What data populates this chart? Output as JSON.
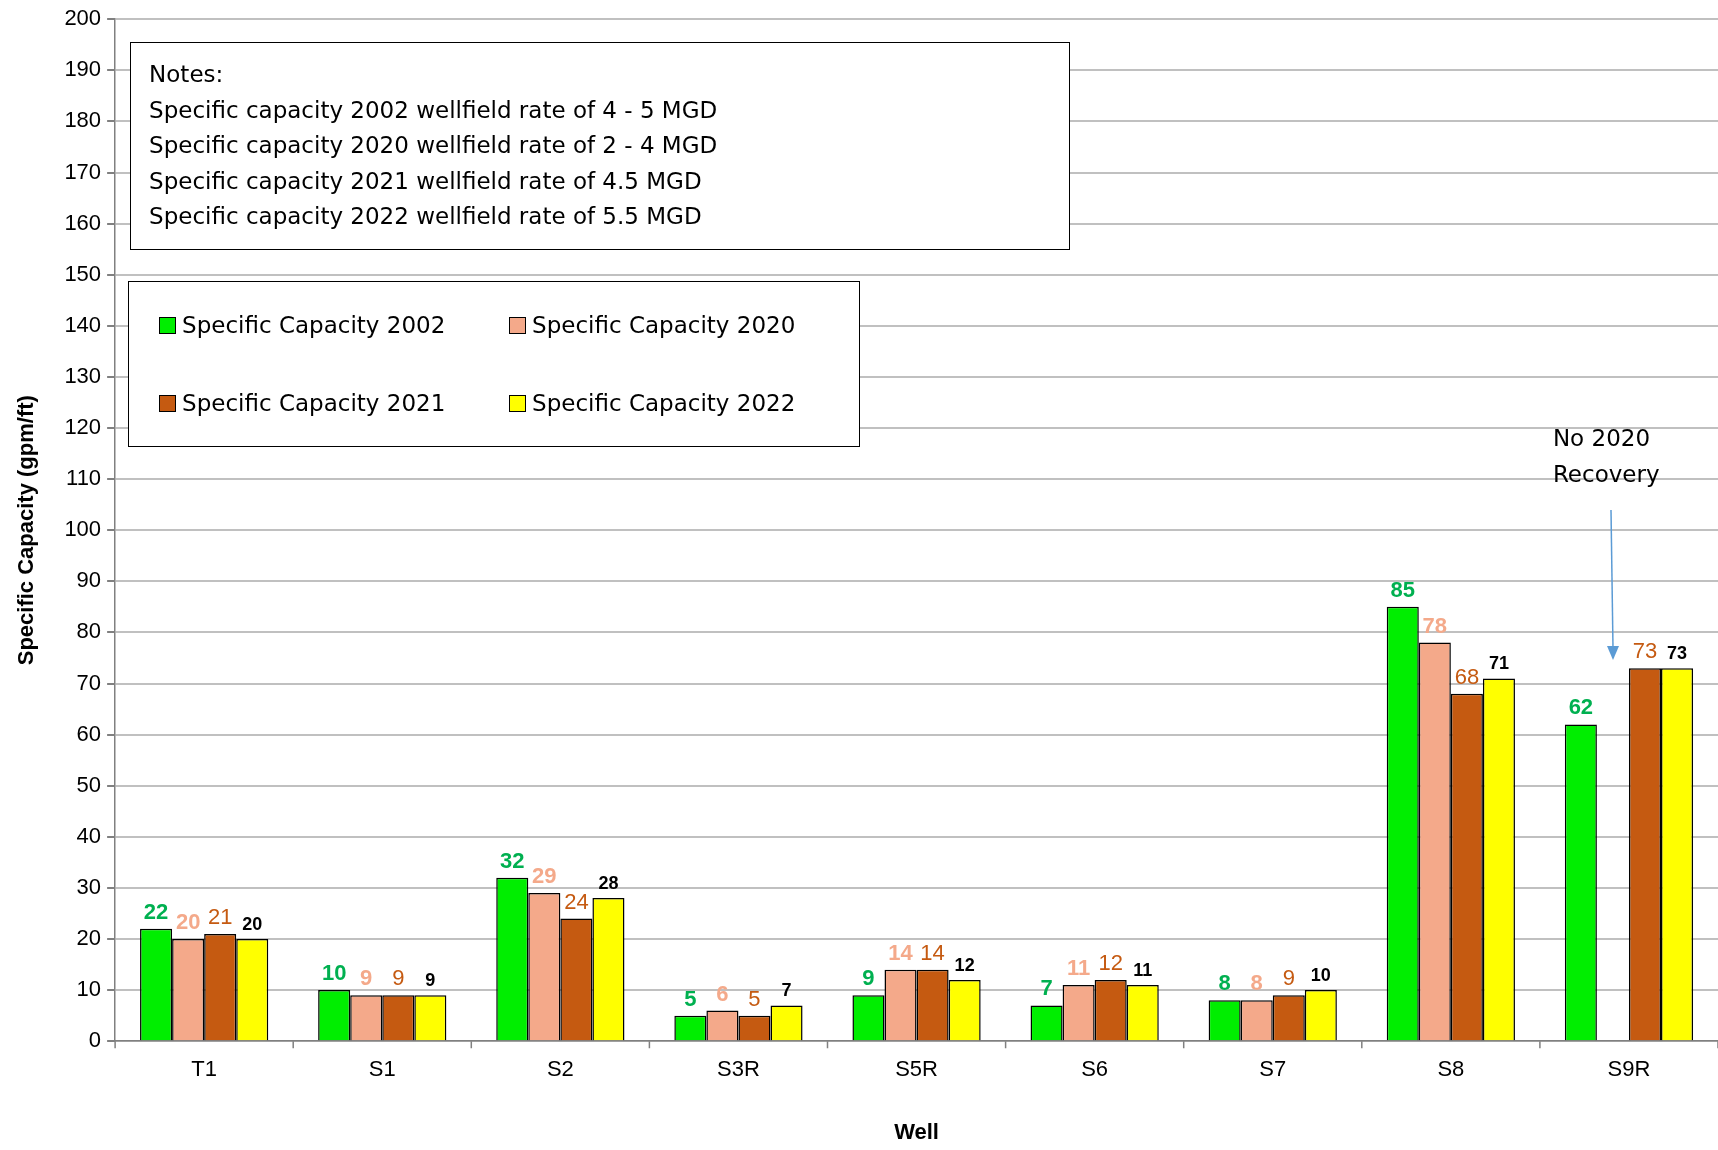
{
  "chart_data": {
    "type": "bar",
    "xlabel": "Well",
    "ylabel": "Specific Capacity (gpm/ft)",
    "categories": [
      "T1",
      "S1",
      "S2",
      "S3R",
      "S5R",
      "S6",
      "S7",
      "S8",
      "S9R"
    ],
    "series": [
      {
        "name": "Specific Capacity 2002",
        "color": "#00ee00",
        "values": [
          22,
          10,
          32,
          5,
          9,
          7,
          8,
          85,
          62
        ]
      },
      {
        "name": "Specific Capacity 2020",
        "color": "#f4a98a",
        "values": [
          20,
          9,
          29,
          6,
          14,
          11,
          8,
          78,
          null
        ]
      },
      {
        "name": "Specific Capacity 2021",
        "color": "#c55a11",
        "values": [
          21,
          9,
          24,
          5,
          14,
          12,
          9,
          68,
          73
        ]
      },
      {
        "name": "Specific Capacity 2022",
        "color": "#ffff00",
        "values": [
          20,
          9,
          28,
          7,
          12,
          11,
          10,
          71,
          73
        ]
      }
    ],
    "ylim": [
      0,
      200
    ],
    "yticks": [
      0,
      10,
      20,
      30,
      40,
      50,
      60,
      70,
      80,
      90,
      100,
      110,
      120,
      130,
      140,
      150,
      160,
      170,
      180,
      190,
      200
    ],
    "grid": "y",
    "legend": "top left",
    "data_labels": true,
    "annotations": [
      "Notes:",
      "Specific capacity 2002 wellfield rate of 4 - 5 MGD",
      "Specific capacity 2020 wellfield rate of 2 - 4 MGD",
      "Specific capacity 2021 wellfield rate of 4.5 MGD",
      "Specific capacity 2022 wellfield rate of 5.5 MGD",
      "No  2020 Recovery"
    ]
  }
}
